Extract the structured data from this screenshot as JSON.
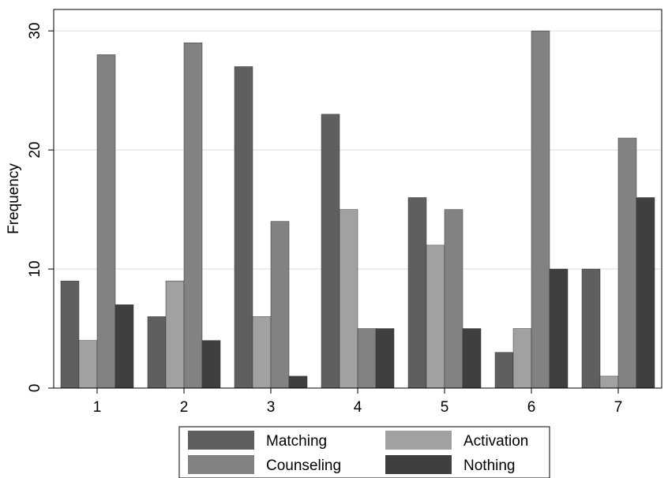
{
  "chart_data": {
    "type": "bar",
    "categories": [
      "1",
      "2",
      "3",
      "4",
      "5",
      "6",
      "7"
    ],
    "series": [
      {
        "name": "Matching",
        "color": "#5f5f5f",
        "values": [
          9,
          6,
          27,
          23,
          16,
          3,
          10
        ]
      },
      {
        "name": "Activation",
        "color": "#a1a1a1",
        "values": [
          4,
          9,
          6,
          15,
          12,
          5,
          1
        ]
      },
      {
        "name": "Counseling",
        "color": "#828282",
        "values": [
          28,
          29,
          14,
          5,
          15,
          30,
          21
        ]
      },
      {
        "name": "Nothing",
        "color": "#3f3f3f",
        "values": [
          7,
          4,
          1,
          5,
          5,
          10,
          16
        ]
      }
    ],
    "ylabel": "Frequency",
    "xlabel": "",
    "ylim": [
      0,
      31.8
    ],
    "yticks": [
      0,
      10,
      20,
      30
    ],
    "grid": true,
    "legend_placement": "bottom"
  }
}
